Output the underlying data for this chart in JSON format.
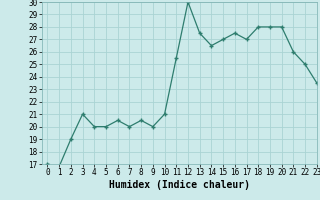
{
  "x": [
    0,
    1,
    2,
    3,
    4,
    5,
    6,
    7,
    8,
    9,
    10,
    11,
    12,
    13,
    14,
    15,
    16,
    17,
    18,
    19,
    20,
    21,
    22,
    23
  ],
  "y": [
    17,
    16.8,
    19,
    21,
    20,
    20,
    20.5,
    20,
    20.5,
    20,
    21,
    25.5,
    30,
    27.5,
    26.5,
    27,
    27.5,
    27,
    28,
    28,
    28,
    26,
    25,
    23.5
  ],
  "line_color": "#2e7d6e",
  "marker": "+",
  "bg_color": "#cceaea",
  "grid_color": "#aad4d4",
  "xlabel": "Humidex (Indice chaleur)",
  "ylim": [
    17,
    30
  ],
  "xlim": [
    -0.5,
    23
  ],
  "yticks": [
    17,
    18,
    19,
    20,
    21,
    22,
    23,
    24,
    25,
    26,
    27,
    28,
    29,
    30
  ],
  "xticks": [
    0,
    1,
    2,
    3,
    4,
    5,
    6,
    7,
    8,
    9,
    10,
    11,
    12,
    13,
    14,
    15,
    16,
    17,
    18,
    19,
    20,
    21,
    22,
    23
  ],
  "tick_fontsize": 5.5,
  "label_fontsize": 7.0,
  "label_fontweight": "bold"
}
